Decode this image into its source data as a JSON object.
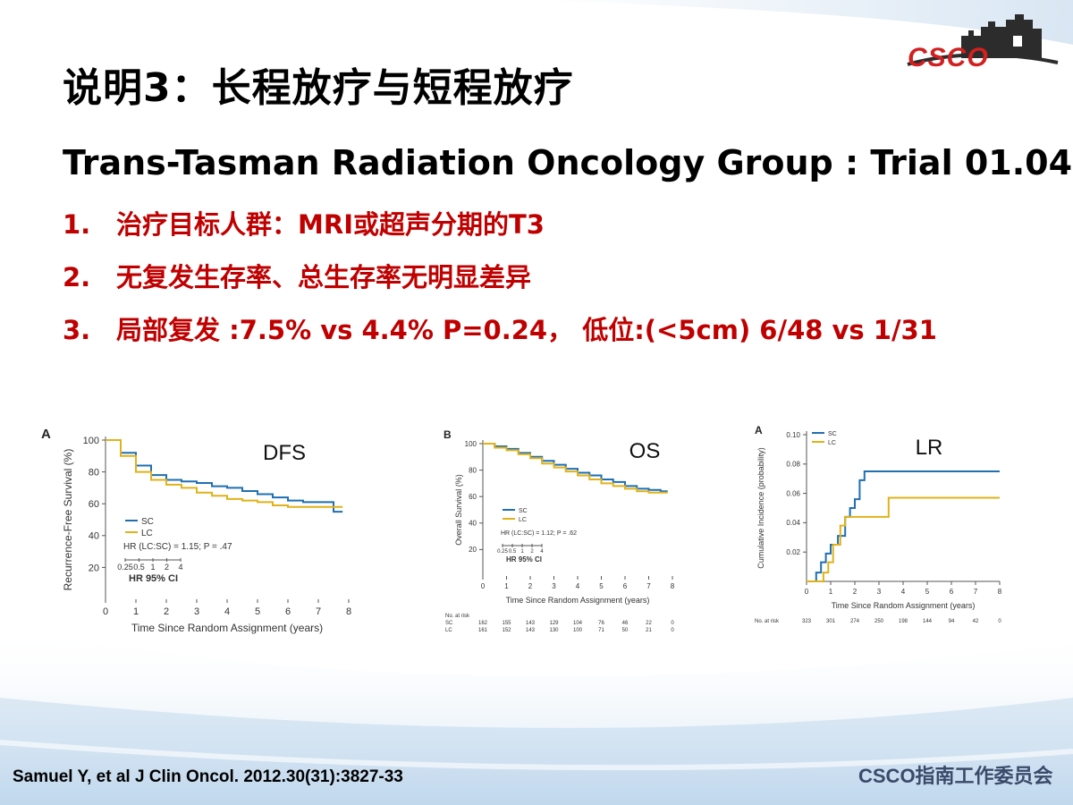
{
  "slide": {
    "title": "说明3：长程放疗与短程放疗",
    "subtitle": "Trans-Tasman Radiation Oncology Group : Trial 01.04",
    "points": [
      {
        "num": "1.",
        "text": "治疗目标人群：MRI或超声分期的T3"
      },
      {
        "num": "2.",
        "text": "无复发生存率、总生存率无明显差异"
      },
      {
        "num": "3.",
        "text": "局部复发 :7.5% vs 4.4% P=0.24， 低位:(<5cm) 6/48 vs 1/31"
      }
    ],
    "citation": "Samuel Y, et al J Clin Oncol. 2012.30(31):3827-33",
    "footer_org": "CSCO指南工作委员会",
    "logo_text": "CSCO"
  },
  "colors": {
    "sc": "#1f6fb2",
    "lc": "#e0b21a",
    "accent_red": "#c00000"
  },
  "chart_data": [
    {
      "type": "line",
      "panel": "A",
      "label": "DFS",
      "ylabel": "Recurrence-Free Survival (%)",
      "xlabel": "Time Since Random Assignment (years)",
      "xlim": [
        0,
        8
      ],
      "ylim": [
        0,
        100
      ],
      "xticks": [
        0,
        1,
        2,
        3,
        4,
        5,
        6,
        7,
        8
      ],
      "yticks": [
        20,
        40,
        60,
        80,
        100
      ],
      "legend": [
        "SC",
        "LC"
      ],
      "hr_text": "HR (LC:SC) = 1.15; P = .47",
      "ci_label": "HR 95% CI",
      "ci_ticks": [
        "0.25",
        "0.5",
        "1",
        "2",
        "4"
      ],
      "series": [
        {
          "name": "SC",
          "x": [
            0,
            0.5,
            1,
            1.5,
            2,
            2.5,
            3,
            3.5,
            4,
            4.5,
            5,
            5.5,
            6,
            6.5,
            7,
            7.5,
            7.8
          ],
          "y": [
            100,
            92,
            84,
            78,
            75,
            74,
            73,
            71,
            70,
            68,
            66,
            64,
            62,
            61,
            61,
            55,
            55
          ]
        },
        {
          "name": "LC",
          "x": [
            0,
            0.5,
            1,
            1.5,
            2,
            2.5,
            3,
            3.5,
            4,
            4.5,
            5,
            5.5,
            6,
            6.5,
            7,
            7.5,
            7.8
          ],
          "y": [
            100,
            90,
            80,
            75,
            72,
            70,
            67,
            65,
            63,
            62,
            61,
            59,
            58,
            58,
            58,
            58,
            58
          ]
        }
      ]
    },
    {
      "type": "line",
      "panel": "B",
      "label": "OS",
      "ylabel": "Overall Survival (%)",
      "xlabel": "Time Since Random Assignment (years)",
      "xlim": [
        0,
        8
      ],
      "ylim": [
        0,
        100
      ],
      "xticks": [
        0,
        1,
        2,
        3,
        4,
        5,
        6,
        7,
        8
      ],
      "yticks": [
        20,
        40,
        60,
        80,
        100
      ],
      "legend": [
        "SC",
        "LC"
      ],
      "hr_text": "HR (LC:SC) = 1.12; P = .62",
      "ci_label": "HR 95% CI",
      "ci_ticks": [
        "0.25",
        "0.5",
        "1",
        "2",
        "4"
      ],
      "at_risk": {
        "label": "No. at risk",
        "rows": [
          {
            "name": "SC",
            "values": [
              "162",
              "155",
              "143",
              "129",
              "104",
              "76",
              "46",
              "22",
              "0"
            ]
          },
          {
            "name": "LC",
            "values": [
              "161",
              "152",
              "143",
              "130",
              "100",
              "71",
              "50",
              "21",
              "0"
            ]
          }
        ]
      },
      "series": [
        {
          "name": "SC",
          "x": [
            0,
            0.5,
            1,
            1.5,
            2,
            2.5,
            3,
            3.5,
            4,
            4.5,
            5,
            5.5,
            6,
            6.5,
            7,
            7.5,
            7.8
          ],
          "y": [
            100,
            98,
            96,
            93,
            90,
            87,
            84,
            81,
            78,
            76,
            73,
            71,
            68,
            66,
            65,
            64,
            64
          ]
        },
        {
          "name": "LC",
          "x": [
            0,
            0.5,
            1,
            1.5,
            2,
            2.5,
            3,
            3.5,
            4,
            4.5,
            5,
            5.5,
            6,
            6.5,
            7,
            7.5,
            7.8
          ],
          "y": [
            100,
            97,
            95,
            92,
            89,
            85,
            82,
            79,
            76,
            73,
            70,
            68,
            66,
            64,
            63,
            63,
            63
          ]
        }
      ]
    },
    {
      "type": "line",
      "panel": "A",
      "label": "LR",
      "ylabel": "Cumulative Incidence (probability)",
      "xlabel": "Time Since Random Assignment (years)",
      "xlim": [
        0,
        8
      ],
      "ylim": [
        0,
        0.1
      ],
      "xticks": [
        0,
        1,
        2,
        3,
        4,
        5,
        6,
        7,
        8
      ],
      "yticks": [
        0.02,
        0.04,
        0.06,
        0.08,
        0.1
      ],
      "ytick_labels": [
        "0.02",
        "0.04",
        "0.06",
        "0.08",
        "0.10"
      ],
      "legend": [
        "SC",
        "LC"
      ],
      "at_risk": {
        "label": "No. at risk",
        "rows": [
          {
            "name": "",
            "values": [
              "323",
              "301",
              "274",
              "250",
              "198",
              "144",
              "94",
              "42",
              "0"
            ]
          }
        ]
      },
      "series": [
        {
          "name": "SC",
          "x": [
            0,
            0.4,
            0.6,
            0.8,
            1.0,
            1.3,
            1.6,
            1.8,
            2.0,
            2.2,
            2.4,
            8
          ],
          "y": [
            0,
            0.006,
            0.013,
            0.019,
            0.025,
            0.031,
            0.044,
            0.05,
            0.056,
            0.069,
            0.075,
            0.075
          ]
        },
        {
          "name": "LC",
          "x": [
            0,
            0.7,
            0.9,
            1.1,
            1.4,
            1.6,
            3.4,
            8
          ],
          "y": [
            0,
            0.006,
            0.013,
            0.025,
            0.038,
            0.044,
            0.057,
            0.057
          ]
        }
      ]
    }
  ]
}
